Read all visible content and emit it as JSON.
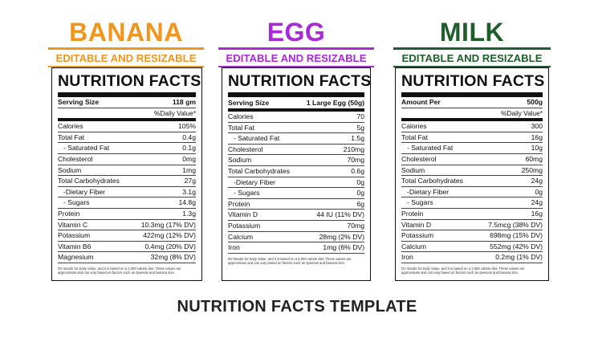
{
  "colors": {
    "banana": "#f0961e",
    "egg": "#a928d8",
    "milk": "#1e5e2c"
  },
  "products": [
    {
      "title": "BANANA",
      "subtitle": "EDITABLE AND RESIZABLE",
      "panel": {
        "heading": "NUTRITION FACTS",
        "serving_label": "Serving Size",
        "serving_value": "118 gm",
        "daily_value_header": "%Daily Value*",
        "rows": [
          {
            "label": "Calories",
            "value": "105%"
          },
          {
            "label": "Total Fat",
            "value": "0.4g"
          },
          {
            "label": "- Saturated Fat",
            "value": "0.1g"
          },
          {
            "label": "Cholesterol",
            "value": "0mg"
          },
          {
            "label": "Sodium",
            "value": "1mg"
          },
          {
            "label": "Total Carbohydrates",
            "value": "27g"
          },
          {
            "label": "-Dietary Fiber",
            "value": "3.1g"
          },
          {
            "label": "- Sugars",
            "value": "14.8g"
          },
          {
            "label": "Protein",
            "value": "1.3g"
          },
          {
            "label": "Vitamin C",
            "value": "10.3mg (17% DV)"
          },
          {
            "label": "Potassium",
            "value": "422mg (12% DV)"
          },
          {
            "label": "Vitamin B6",
            "value": "0.4mg (20% DV)"
          },
          {
            "label": "Magnesium",
            "value": "32mg (8% DV)"
          }
        ],
        "footnote": "DV stands for Daily Value, and it is based on a 2,000 calorie diet. These values are approximate and can vary based on factors such as ripeness and banana size."
      }
    },
    {
      "title": "EGG",
      "subtitle": "EDITABLE AND RESIZABLE",
      "panel": {
        "heading": "NUTRITION FACTS",
        "serving_label": "Serving Size",
        "serving_value": "1 Large Egg (50g)",
        "daily_value_header": "",
        "rows": [
          {
            "label": "Calories",
            "value": "70"
          },
          {
            "label": "Total Fat",
            "value": "5g"
          },
          {
            "label": "- Saturated Fat",
            "value": "1.5g"
          },
          {
            "label": "Cholesterol",
            "value": "210mg"
          },
          {
            "label": "Sodium",
            "value": "70mg"
          },
          {
            "label": "Total Carbohydrates",
            "value": "0.6g"
          },
          {
            "label": "-Dietary Fiber",
            "value": "0g"
          },
          {
            "label": "- Sugars",
            "value": "0g"
          },
          {
            "label": "Protein",
            "value": "6g"
          },
          {
            "label": "Vitamin D",
            "value": "44 IU (11% DV)"
          },
          {
            "label": "Potassium",
            "value": "70mg"
          },
          {
            "label": "Calcium",
            "value": "28mg (2% DV)"
          },
          {
            "label": "Iron",
            "value": "1mg (6% DV)"
          }
        ],
        "footnote": "DV stands for Daily Value, and it is based on a 2,000 calorie diet. These values are approximate and can vary based on factors such as ripeness and banana size."
      }
    },
    {
      "title": "MILK",
      "subtitle": "EDITABLE AND RESIZABLE",
      "panel": {
        "heading": "NUTRITION FACTS",
        "serving_label": "Amount Per",
        "serving_value": "500g",
        "daily_value_header": "%Daily Value*",
        "rows": [
          {
            "label": "Calories",
            "value": "300"
          },
          {
            "label": "Total Fat",
            "value": "16g"
          },
          {
            "label": "- Saturated Fat",
            "value": "10g"
          },
          {
            "label": "Cholesterol",
            "value": "60mg"
          },
          {
            "label": "Sodium",
            "value": "250mg"
          },
          {
            "label": "Total Carbohydrates",
            "value": "24g"
          },
          {
            "label": "-Dietary Fiber",
            "value": "0g"
          },
          {
            "label": "- Sugars",
            "value": "24g"
          },
          {
            "label": "Protein",
            "value": "16g"
          },
          {
            "label": "Vitamin D",
            "value": "7.5mcg (38% DV)"
          },
          {
            "label": "Potassium",
            "value": "698mg (15% DV)"
          },
          {
            "label": "Calcium",
            "value": "552mg (42% DV)"
          },
          {
            "label": "Iron",
            "value": "0.2mg (1% DV)"
          }
        ],
        "footnote": "DV stands for Daily Value, and it is based on a 2,000 calorie diet. These values are approximate and can vary based on factors such as ripeness and banana size."
      }
    }
  ],
  "footer": {
    "title": "NUTRITION FACTS TEMPLATE"
  }
}
